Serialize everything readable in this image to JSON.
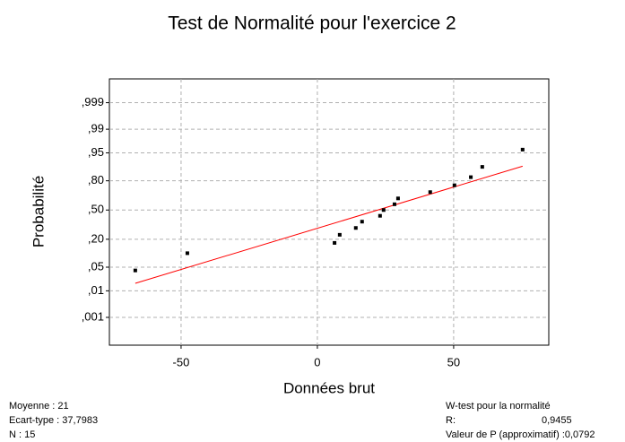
{
  "chart_data": {
    "type": "probability",
    "title": "Test de Normalité pour l'exercice 2",
    "xlabel": "Données brut",
    "ylabel": "Probabilité",
    "yscale": "probit",
    "grid": true,
    "color": "#000000",
    "x": [
      -66.8,
      -47.7,
      6.3,
      8.2,
      14.1,
      16.4,
      23.0,
      24.3,
      28.3,
      29.6,
      41.4,
      50.3,
      56.3,
      60.5,
      75.3
    ],
    "values": [
      0.041,
      0.107,
      0.172,
      0.238,
      0.303,
      0.369,
      0.434,
      0.5,
      0.566,
      0.631,
      0.697,
      0.762,
      0.828,
      0.893,
      0.959
    ],
    "fit_line": {
      "color": "#ff0000",
      "x": [
        -66.8,
        75.3
      ],
      "values": [
        0.0174,
        0.8965
      ]
    },
    "xlim": [
      -76.3,
      84.9
    ],
    "xticks": [
      -50,
      0,
      50
    ],
    "ylim": [
      5e-05,
      0.99992
    ],
    "yticks": [
      {
        "value": 0.001,
        "label": ",001"
      },
      {
        "value": 0.01,
        "label": ",01"
      },
      {
        "value": 0.05,
        "label": ",05"
      },
      {
        "value": 0.2,
        "label": ",20"
      },
      {
        "value": 0.5,
        "label": ",50"
      },
      {
        "value": 0.8,
        "label": ",80"
      },
      {
        "value": 0.95,
        "label": ",95"
      },
      {
        "value": 0.99,
        "label": ",99"
      },
      {
        "value": 0.999,
        "label": ",999"
      }
    ],
    "stats_left": [
      "Moyenne : 21",
      "Ecart-type : 37,7983",
      "N : 15"
    ],
    "stats_right": {
      "title": "W-test pour la normalité",
      "r_label": "R:",
      "r_value": "0,9455",
      "p_value": "Valeur de P (approximatif) :0,0792"
    }
  }
}
